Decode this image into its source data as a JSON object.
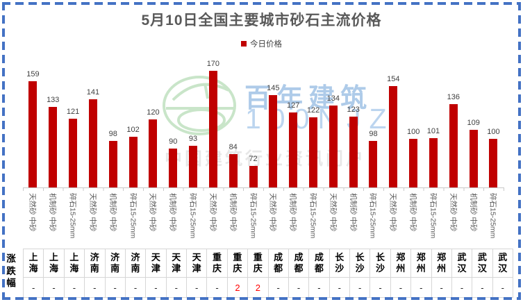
{
  "watermark": {
    "brand_cn": "百年建筑",
    "brand_en": "100NJZ",
    "tagline": "中国建筑行业资讯门户"
  },
  "colors": {
    "bar": "#C00000",
    "change_up": "#FF0000",
    "frame_border": "#4472C4",
    "title_text": "#595959"
  },
  "chart_data": {
    "type": "bar",
    "title": "5月10日全国主要城市砂石主流价格",
    "legend": [
      "今日价格"
    ],
    "legend_position": "top-center",
    "grid": false,
    "ylim": [
      50,
      180
    ],
    "bar_color": "#C00000",
    "change_row_label": "涨跌幅",
    "categories": [
      "天然砂 中砂",
      "机制砂 中砂",
      "碎石15-25mm",
      "天然砂 中砂",
      "机制砂 中砂",
      "碎石15-25mm",
      "天然砂 中砂",
      "机制砂 中砂",
      "碎石15-25mm",
      "天然砂 中砂",
      "机制砂 中砂",
      "碎石15-25mm",
      "天然砂 中砂",
      "机制砂 中砂",
      "碎石15-25mm",
      "天然砂 中砂",
      "机制砂 中砂",
      "碎石15-25mm",
      "天然砂 中砂",
      "机制砂 中砂",
      "碎石15-25mm",
      "天然砂 中砂",
      "机制砂 中砂",
      "碎石15-25mm"
    ],
    "cities": [
      "上海",
      "上海",
      "上海",
      "济南",
      "济南",
      "济南",
      "天津",
      "天津",
      "天津",
      "重庆",
      "重庆",
      "重庆",
      "成都",
      "成都",
      "成都",
      "长沙",
      "长沙",
      "长沙",
      "郑州",
      "郑州",
      "郑州",
      "武汉",
      "武汉",
      "武汉"
    ],
    "series": [
      {
        "name": "今日价格",
        "values": [
          159,
          133,
          121,
          141,
          98,
          102,
          120,
          90,
          93,
          170,
          84,
          72,
          145,
          127,
          122,
          134,
          123,
          98,
          154,
          100,
          101,
          136,
          109,
          100
        ]
      }
    ],
    "changes": [
      "-",
      "-",
      "-",
      "-",
      "-",
      "-",
      "-",
      "-",
      "-",
      "-",
      "2",
      "2",
      "-",
      "-",
      "-",
      "-",
      "-",
      "-",
      "-",
      "-",
      "-",
      "-",
      "-",
      "-"
    ]
  }
}
